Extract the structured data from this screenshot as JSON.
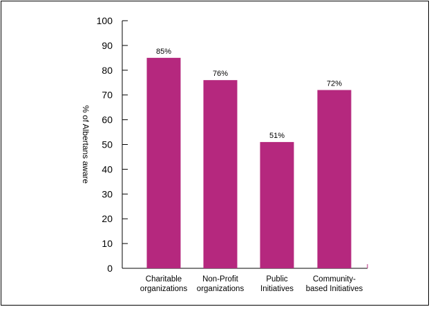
{
  "chart_data": {
    "type": "bar",
    "categories": [
      [
        "Charitable",
        "organizations"
      ],
      [
        "Non-Profit",
        "organizations"
      ],
      [
        "Public",
        "Initiatives"
      ],
      [
        "Community-",
        "based Initiatives"
      ]
    ],
    "values": [
      85,
      76,
      51,
      72
    ],
    "data_labels": [
      "85%",
      "76%",
      "51%",
      "72%"
    ],
    "ylabel": "% of Albertans aware",
    "ylim": [
      0,
      100
    ],
    "yticks": [
      0,
      10,
      20,
      30,
      40,
      50,
      60,
      70,
      80,
      90,
      100
    ],
    "bar_color": "#b5287e",
    "grid": false,
    "legend": "none"
  }
}
